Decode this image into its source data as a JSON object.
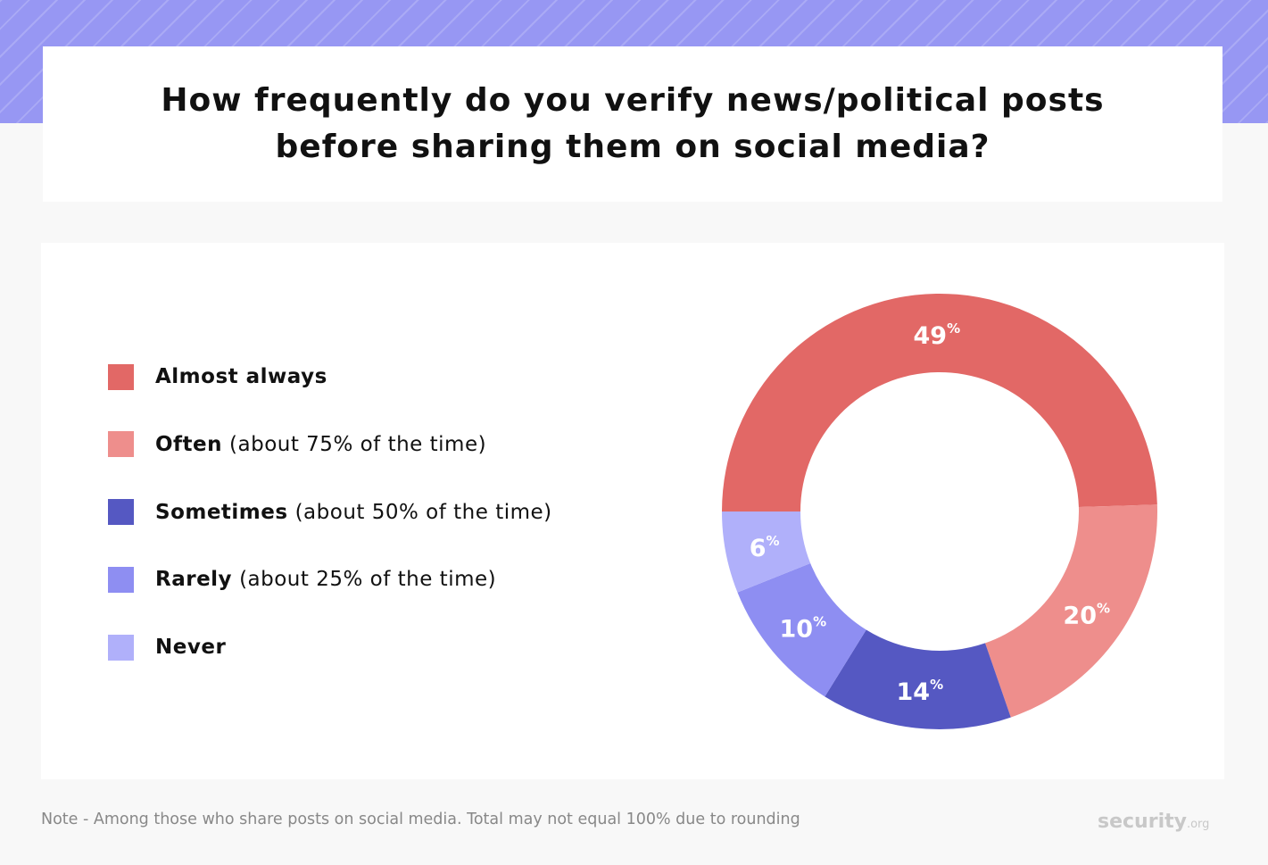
{
  "chart_data": {
    "type": "donut",
    "title": "How frequently do you verify news/political posts before sharing them on social media?",
    "categories": [
      "Almost always",
      "Often",
      "Sometimes",
      "Rarely",
      "Never"
    ],
    "category_details": {
      "1": "(about 75% of the time)",
      "2": "(about 50% of the time)",
      "3": "(about 25% of the time)"
    },
    "values": [
      49,
      20,
      14,
      10,
      6
    ],
    "value_labels": [
      "49%",
      "20%",
      "14%",
      "10%",
      "6%"
    ],
    "colors": [
      "#e26866",
      "#ee8e8c",
      "#5558c2",
      "#8e8ef2",
      "#b0b0fa"
    ],
    "legend": "left",
    "note": "Note - Among those who share posts on social media. Total may not equal 100% due to rounding",
    "logo": "security.org"
  }
}
